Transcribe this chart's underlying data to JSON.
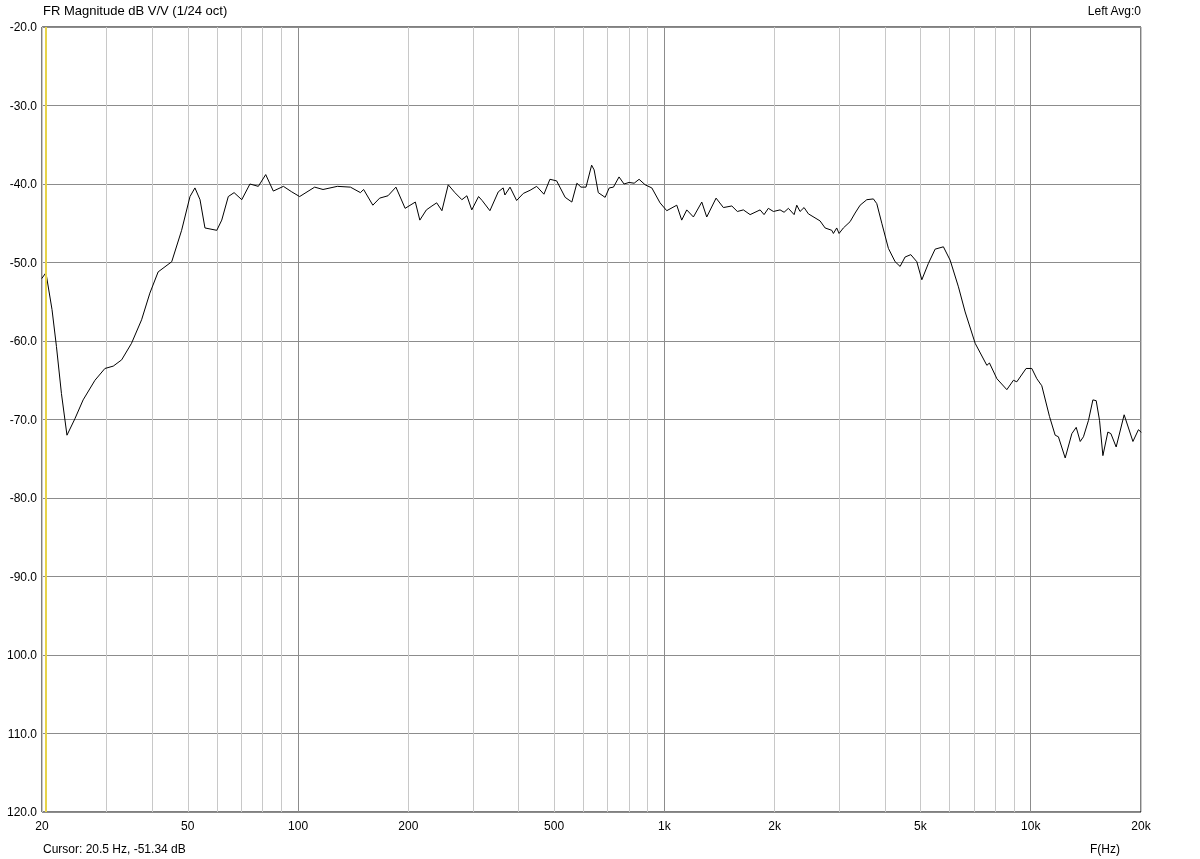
{
  "chart_data": {
    "type": "line",
    "title": "FR Magnitude dB V/V (1/24 oct)",
    "xlabel": "F(Hz)",
    "annotations": [
      "Left Avg:0",
      "Cursor: 20.5 Hz, -51.34 dB"
    ],
    "x": [
      20,
      20.5,
      21.3,
      21.9,
      22.6,
      23.4,
      24.6,
      25.9,
      27.9,
      29.7,
      31.3,
      33.0,
      35.1,
      37.4,
      39.4,
      41.5,
      45.2,
      48.1,
      50.7,
      52.3,
      54.0,
      55.7,
      60.0,
      61.9,
      64.5,
      66.9,
      70.2,
      73.9,
      77.9,
      81.6,
      85.6,
      91.2,
      96.1,
      101,
      111,
      117,
      128,
      139,
      148,
      151,
      160,
      167,
      176,
      185,
      196,
      209,
      215,
      224,
      232,
      239,
      247,
      257,
      268,
      280,
      289,
      298,
      311,
      318,
      334,
      352,
      363,
      367,
      379,
      395,
      412,
      430,
      448,
      469,
      487,
      508,
      536,
      559,
      577,
      592,
      611,
      633,
      643,
      660,
      689,
      707,
      726,
      752,
      776,
      801,
      827,
      853,
      886,
      924,
      973,
      1015,
      1081,
      1115,
      1151,
      1200,
      1265,
      1305,
      1384,
      1449,
      1528,
      1582,
      1643,
      1714,
      1825,
      1871,
      1922,
      1984,
      2069,
      2122,
      2180,
      2260,
      2298,
      2346,
      2406,
      2472,
      2660,
      2746,
      2864,
      2893,
      2954,
      2998,
      3080,
      3213,
      3316,
      3422,
      3569,
      3720,
      3800,
      3922,
      4088,
      4264,
      4400,
      4540,
      4706,
      4887,
      5044,
      5258,
      5483,
      5776,
      6026,
      6348,
      6622,
      7053,
      7590,
      7715,
      8083,
      8606,
      8970,
      9162,
      9714,
      10068,
      10390,
      10720,
      11250,
      11660,
      11900,
      12420,
      12950,
      13310,
      13650,
      13930,
      14380,
      14780,
      15090,
      15410,
      15740,
      16240,
      16550,
      17110,
      17990,
      19010,
      19680,
      20000
    ],
    "series": [
      {
        "color": "#000000",
        "values": [
          -52.0,
          -51.3,
          -56.0,
          -60.7,
          -66.7,
          -72.0,
          -69.9,
          -67.5,
          -65.0,
          -63.5,
          -63.2,
          -62.4,
          -60.3,
          -57.3,
          -53.9,
          -51.2,
          -49.9,
          -45.9,
          -41.6,
          -40.5,
          -42.0,
          -45.6,
          -45.9,
          -44.6,
          -41.6,
          -41.1,
          -42.0,
          -40.0,
          -40.3,
          -38.8,
          -40.9,
          -40.3,
          -41.0,
          -41.6,
          -40.4,
          -40.7,
          -40.3,
          -40.4,
          -41.1,
          -40.7,
          -42.7,
          -41.8,
          -41.5,
          -40.4,
          -43.1,
          -42.3,
          -44.6,
          -43.3,
          -42.8,
          -42.4,
          -43.4,
          -40.1,
          -41.1,
          -42.0,
          -41.5,
          -43.3,
          -41.6,
          -42.1,
          -43.4,
          -41.0,
          -40.5,
          -41.4,
          -40.4,
          -42.1,
          -41.2,
          -40.8,
          -40.3,
          -41.3,
          -39.4,
          -39.6,
          -41.7,
          -42.3,
          -39.9,
          -40.4,
          -40.4,
          -37.6,
          -38.2,
          -41.1,
          -41.7,
          -40.5,
          -40.4,
          -39.1,
          -40.0,
          -39.8,
          -39.9,
          -39.4,
          -40.1,
          -40.5,
          -42.4,
          -43.4,
          -42.7,
          -44.6,
          -43.3,
          -44.2,
          -42.3,
          -44.2,
          -41.8,
          -43.0,
          -42.8,
          -43.5,
          -43.3,
          -43.9,
          -43.3,
          -43.9,
          -43.1,
          -43.5,
          -43.3,
          -43.6,
          -43.1,
          -43.9,
          -42.7,
          -43.5,
          -43.0,
          -43.8,
          -44.7,
          -45.6,
          -45.9,
          -46.3,
          -45.6,
          -46.3,
          -45.6,
          -44.8,
          -43.7,
          -42.7,
          -42.0,
          -41.9,
          -42.5,
          -45.0,
          -48.2,
          -49.9,
          -50.5,
          -49.3,
          -49.0,
          -49.9,
          -52.2,
          -50.1,
          -48.3,
          -48.0,
          -49.7,
          -53.1,
          -56.3,
          -60.3,
          -63.1,
          -62.8,
          -64.8,
          -66.2,
          -65.0,
          -65.2,
          -63.5,
          -63.5,
          -64.8,
          -65.7,
          -69.6,
          -72.0,
          -72.2,
          -74.9,
          -71.8,
          -71.0,
          -72.8,
          -72.2,
          -70.1,
          -67.5,
          -67.6,
          -70.1,
          -74.6,
          -71.6,
          -71.8,
          -73.5,
          -69.4,
          -72.8,
          -71.3,
          -71.6
        ]
      }
    ],
    "log": "x",
    "xlim": [
      20,
      20000
    ],
    "xticks": [
      20,
      {
        "value": 30,
        "label": null
      },
      {
        "value": 40,
        "label": null
      },
      50,
      {
        "value": 60,
        "label": null
      },
      {
        "value": 70,
        "label": null
      },
      {
        "value": 80,
        "label": null
      },
      {
        "value": 90,
        "label": null
      },
      100,
      200,
      {
        "value": 300,
        "label": null
      },
      {
        "value": 400,
        "label": null
      },
      500,
      {
        "value": 600,
        "label": null
      },
      {
        "value": 700,
        "label": null
      },
      {
        "value": 800,
        "label": null
      },
      {
        "value": 900,
        "label": null
      },
      {
        "value": 1000,
        "label": "1k"
      },
      {
        "value": 2000,
        "label": "2k"
      },
      {
        "value": 3000,
        "label": null
      },
      {
        "value": 4000,
        "label": null
      },
      {
        "value": 5000,
        "label": "5k"
      },
      {
        "value": 6000,
        "label": null
      },
      {
        "value": 7000,
        "label": null
      },
      {
        "value": 8000,
        "label": null
      },
      {
        "value": 9000,
        "label": null
      },
      {
        "value": 10000,
        "label": "10k"
      },
      {
        "value": 20000,
        "label": "20k"
      }
    ],
    "ylim": [
      -120,
      -20
    ],
    "yticks": [
      {
        "value": -120,
        "label": "120.0"
      },
      {
        "value": -110,
        "label": "110.0"
      },
      {
        "value": -100,
        "label": "100.0"
      },
      {
        "value": -90,
        "label": "-90.0"
      },
      {
        "value": -80,
        "label": "-80.0"
      },
      {
        "value": -70,
        "label": "-70.0"
      },
      {
        "value": -60,
        "label": "-60.0"
      },
      {
        "value": -50,
        "label": "-50.0"
      },
      {
        "value": -40,
        "label": "-40.0"
      },
      {
        "value": -30,
        "label": "-30.0"
      },
      {
        "value": -20,
        "label": "-20.0"
      }
    ],
    "grid": true,
    "marker": "none",
    "ref_lines": [
      {
        "axis": "x",
        "value": 20.5,
        "color": "#e6d34a"
      }
    ]
  }
}
